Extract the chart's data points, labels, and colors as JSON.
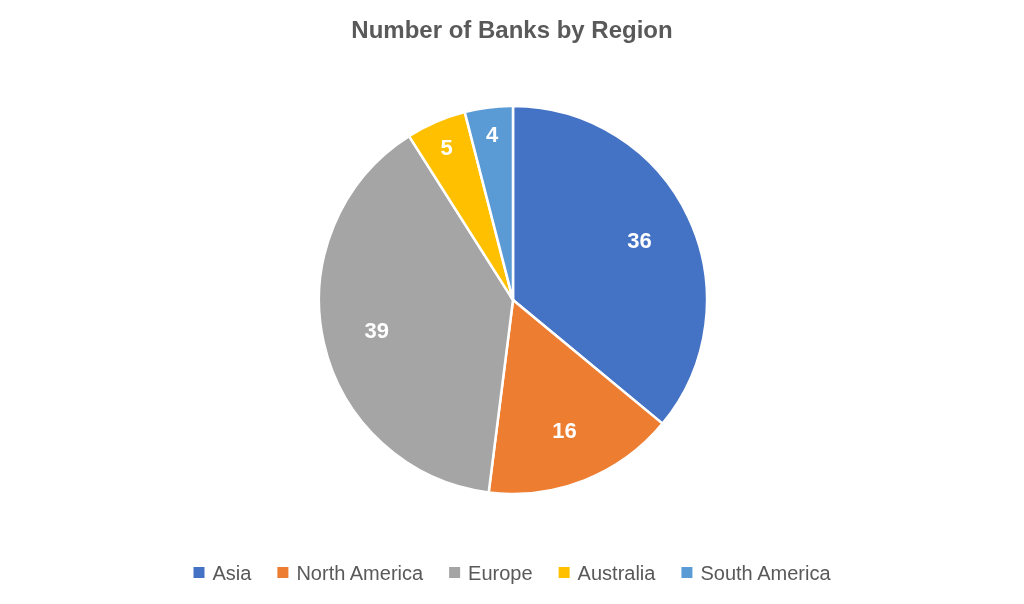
{
  "chart_data": {
    "type": "pie",
    "title": "Number of Banks by Region",
    "categories": [
      "Asia",
      "North America",
      "Europe",
      "Australia",
      "South America"
    ],
    "values": [
      36,
      16,
      39,
      5,
      4
    ],
    "colors": [
      "#4472c4",
      "#ed7d31",
      "#a5a5a5",
      "#ffc000",
      "#5b9bd5"
    ],
    "data_labels": true,
    "legend": "bottom"
  }
}
